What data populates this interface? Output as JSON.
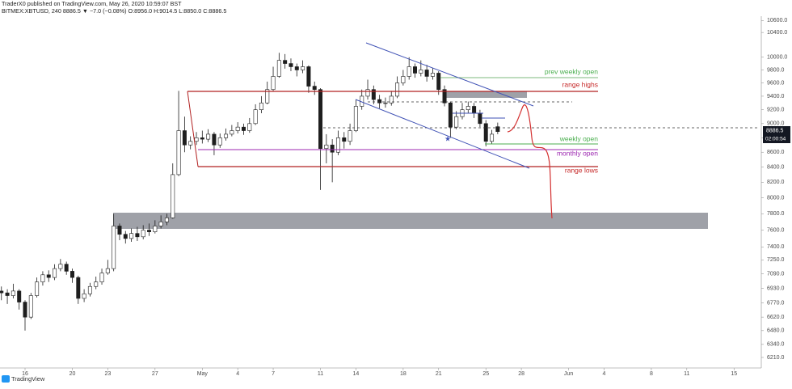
{
  "header": {
    "publisher": "TraderX0 published on TradingView.com, May 26, 2020 10:59:07 BST",
    "symbol_line": "BITMEX:XBTUSD, 240  8886.5  ▼  −7.0 (−0.08%)  O:8956.0  H:9014.5  L:8850.0  C:8886.5"
  },
  "chart_data": {
    "type": "candlestick",
    "log_scale": true,
    "up_color": "#ffffff",
    "down_color": "#1e1e1e",
    "wick_color": "#1e1e1e",
    "x": [
      -2,
      -1.5,
      -1,
      -0.5,
      0,
      0.5,
      1,
      1.5,
      2,
      2.5,
      3,
      3.5,
      4,
      4.5,
      5,
      5.5,
      6,
      6.5,
      7,
      7.5,
      8,
      8.5,
      9,
      9.5,
      10,
      10.5,
      11,
      11.5,
      12,
      12.5,
      13,
      13.5,
      14,
      14.5,
      15,
      15.5,
      16,
      16.5,
      17,
      17.5,
      18,
      18.5,
      19,
      19.5,
      20,
      20.5,
      21,
      21.5,
      22,
      22.5,
      23,
      23.5,
      24,
      24.5,
      25,
      25.5,
      26,
      26.5,
      27,
      27.5,
      28,
      28.5,
      29,
      29.5,
      30,
      30.5,
      31,
      31.5,
      32,
      32.5,
      33,
      33.5,
      34,
      34.5,
      35,
      35.5,
      36,
      36.5,
      37,
      37.5,
      38,
      38.5,
      39,
      39.5,
      40
    ],
    "open": [
      6900,
      6880,
      6850,
      6900,
      6780,
      6620,
      6850,
      7000,
      7080,
      7050,
      7150,
      7200,
      7120,
      7050,
      6820,
      6870,
      6950,
      7000,
      7100,
      7150,
      7650,
      7550,
      7500,
      7560,
      7520,
      7600,
      7580,
      7650,
      7700,
      7750,
      8300,
      8900,
      8700,
      8750,
      8800,
      8780,
      8850,
      8700,
      8800,
      8850,
      8900,
      8950,
      8900,
      9000,
      9200,
      9300,
      9500,
      9700,
      9950,
      9900,
      9850,
      9800,
      9850,
      9550,
      9500,
      8650,
      8700,
      8600,
      8800,
      8750,
      8900,
      9250,
      9400,
      9500,
      9350,
      9300,
      9300,
      9400,
      9600,
      9700,
      9850,
      9750,
      9800,
      9700,
      9750,
      9500,
      9300,
      8950,
      9100,
      9200,
      9250,
      9150,
      9000,
      8750,
      8956
    ],
    "high": [
      6950,
      6920,
      6980,
      6920,
      6800,
      6880,
      7050,
      7120,
      7130,
      7200,
      7260,
      7230,
      7150,
      7070,
      6920,
      6990,
      7060,
      7150,
      7250,
      7800,
      7680,
      7590,
      7620,
      7640,
      7660,
      7680,
      7720,
      7780,
      7800,
      8450,
      9480,
      9100,
      8820,
      8880,
      8900,
      8920,
      8880,
      8860,
      8930,
      8980,
      9020,
      9000,
      9080,
      9280,
      9400,
      9620,
      9850,
      10070,
      10050,
      9980,
      9900,
      9950,
      9870,
      9620,
      9520,
      8850,
      8780,
      8900,
      8880,
      9000,
      9350,
      9500,
      9650,
      9560,
      9420,
      9380,
      9480,
      9700,
      9800,
      10000,
      9900,
      9950,
      9880,
      9830,
      9780,
      9560,
      9320,
      9180,
      9300,
      9320,
      9300,
      9200,
      9050,
      8910,
      9014.5
    ],
    "low": [
      6800,
      6760,
      6820,
      6700,
      6480,
      6600,
      6830,
      6960,
      7000,
      7020,
      7120,
      7080,
      6990,
      6760,
      6780,
      6840,
      6920,
      6970,
      7080,
      7120,
      7480,
      7440,
      7460,
      7470,
      7490,
      7530,
      7560,
      7620,
      7660,
      7740,
      8280,
      8600,
      8640,
      8700,
      8720,
      8740,
      8560,
      8660,
      8760,
      8820,
      8860,
      8840,
      8870,
      8980,
      9150,
      9280,
      9480,
      9680,
      9820,
      9780,
      9700,
      9750,
      9450,
      9420,
      8100,
      8450,
      8200,
      8560,
      8650,
      8700,
      8880,
      9200,
      9350,
      9280,
      9220,
      9230,
      9260,
      9370,
      9560,
      9650,
      9680,
      9700,
      9620,
      9650,
      9420,
      9250,
      8800,
      8920,
      9060,
      9150,
      9080,
      8950,
      8680,
      8720,
      8850
    ],
    "close": [
      6880,
      6850,
      6900,
      6780,
      6620,
      6850,
      7000,
      7080,
      7050,
      7150,
      7200,
      7120,
      7050,
      6820,
      6870,
      6950,
      7000,
      7100,
      7150,
      7650,
      7550,
      7500,
      7560,
      7520,
      7600,
      7580,
      7650,
      7700,
      7750,
      8300,
      8900,
      8700,
      8750,
      8800,
      8780,
      8850,
      8700,
      8800,
      8850,
      8900,
      8950,
      8900,
      9000,
      9200,
      9300,
      9500,
      9700,
      9950,
      9900,
      9850,
      9800,
      9850,
      9550,
      9500,
      8650,
      8700,
      8600,
      8800,
      8750,
      8900,
      9250,
      9400,
      9500,
      9350,
      9300,
      9300,
      9400,
      9600,
      9700,
      9850,
      9750,
      9800,
      9700,
      9750,
      9500,
      9300,
      8950,
      9100,
      9200,
      9250,
      9150,
      9000,
      8750,
      8850,
      8886.5
    ],
    "xlim": [
      -2.12,
      62.17
    ],
    "xticks": [
      {
        "value": 0,
        "label": "16"
      },
      {
        "value": 4,
        "label": "20"
      },
      {
        "value": 7,
        "label": "23"
      },
      {
        "value": 11,
        "label": "27"
      },
      {
        "value": 15,
        "label": "May"
      },
      {
        "value": 18,
        "label": "4"
      },
      {
        "value": 21,
        "label": "7"
      },
      {
        "value": 25,
        "label": "11"
      },
      {
        "value": 28,
        "label": "14"
      },
      {
        "value": 32,
        "label": "18"
      },
      {
        "value": 35,
        "label": "21"
      },
      {
        "value": 39,
        "label": "25"
      },
      {
        "value": 42,
        "label": "28"
      },
      {
        "value": 46,
        "label": "Jun"
      },
      {
        "value": 49,
        "label": "4"
      },
      {
        "value": 53,
        "label": "8"
      },
      {
        "value": 56,
        "label": "11"
      },
      {
        "value": 60,
        "label": "15"
      }
    ],
    "ylim": [
      6107,
      10950
    ],
    "yticks": [
      {
        "value": 10600,
        "label": "10600.0"
      },
      {
        "value": 10400,
        "label": "10400.0"
      },
      {
        "value": 10000,
        "label": "10000.0"
      },
      {
        "value": 9800,
        "label": "9800.0"
      },
      {
        "value": 9600,
        "label": "9600.0"
      },
      {
        "value": 9400,
        "label": "9400.0"
      },
      {
        "value": 9200,
        "label": "9200.0"
      },
      {
        "value": 9000,
        "label": "9000.0"
      },
      {
        "value": 8800,
        "label": "8800.0"
      },
      {
        "value": 8600,
        "label": "8600.0"
      },
      {
        "value": 8400,
        "label": "8400.0"
      },
      {
        "value": 8200,
        "label": "8200.0"
      },
      {
        "value": 8000,
        "label": "8000.0"
      },
      {
        "value": 7800,
        "label": "7800.0"
      },
      {
        "value": 7600,
        "label": "7600.0"
      },
      {
        "value": 7400,
        "label": "7400.0"
      },
      {
        "value": 7250,
        "label": "7250.0"
      },
      {
        "value": 7090,
        "label": "7090.0"
      },
      {
        "value": 6930,
        "label": "6930.0"
      },
      {
        "value": 6770,
        "label": "6770.0"
      },
      {
        "value": 6620,
        "label": "6620.0"
      },
      {
        "value": 6480,
        "label": "6480.0"
      },
      {
        "value": 6340,
        "label": "6340.0"
      },
      {
        "value": 6210,
        "label": "6210.0"
      }
    ]
  },
  "annotations": {
    "prev_weekly_open": "prev weekly open",
    "range_highs": "range highs",
    "weekly_open": "weekly open",
    "monthly_open": "monthly open",
    "range_lows": "range lows"
  },
  "price_tag": "8886.5",
  "countdown": "02:00:54",
  "logo": "TradingView"
}
